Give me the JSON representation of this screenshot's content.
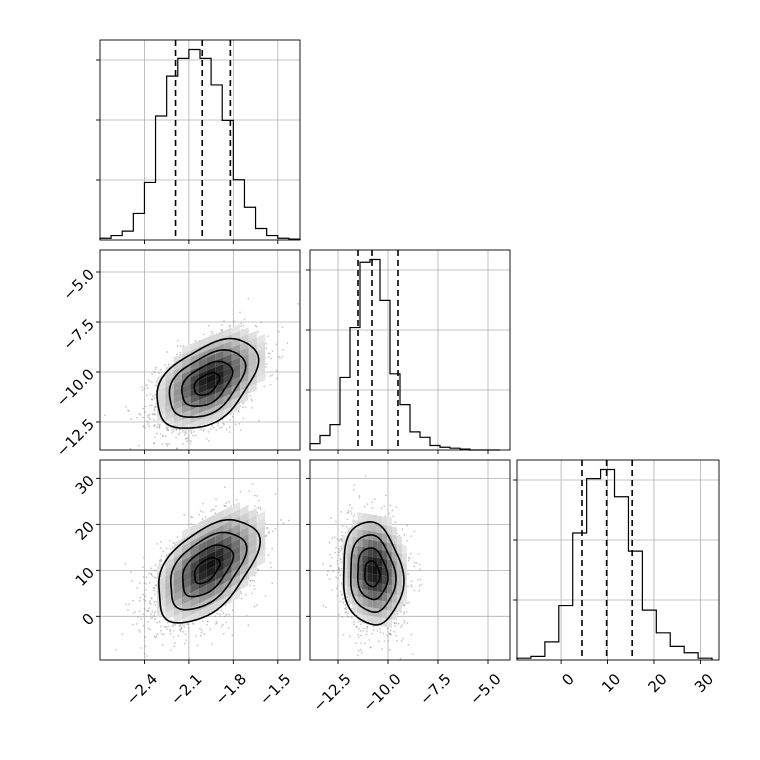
{
  "chart_data": {
    "type": "corner",
    "parameters": [
      {
        "range": [
          -2.7,
          -1.35
        ],
        "ticks": [
          -2.4,
          -2.1,
          -1.8,
          -1.5
        ],
        "tick_labels": [
          "−2.4",
          "−2.1",
          "−1.8",
          "−1.5"
        ],
        "quantiles": [
          -2.19,
          -2.01,
          -1.82
        ]
      },
      {
        "range": [
          -13.9,
          -3.9
        ],
        "ticks": [
          -12.5,
          -10.0,
          -7.5,
          -5.0
        ],
        "tick_labels": [
          "−12.5",
          "−10.0",
          "−7.5",
          "−5.0"
        ],
        "quantiles": [
          -11.5,
          -10.8,
          -9.5
        ]
      },
      {
        "range": [
          -9.5,
          34
        ],
        "ticks": [
          0,
          10,
          20,
          30
        ],
        "tick_labels": [
          "0",
          "10",
          "20",
          "30"
        ],
        "quantiles": [
          4.5,
          9.8,
          15.3
        ]
      }
    ],
    "histograms": [
      {
        "bin_edges": [
          -2.7,
          -2.625,
          -2.55,
          -2.475,
          -2.4,
          -2.325,
          -2.25,
          -2.175,
          -2.1,
          -2.025,
          -1.95,
          -1.875,
          -1.8,
          -1.725,
          -1.65,
          -1.575,
          -1.5,
          -1.425,
          -1.35
        ],
        "counts": [
          2,
          5,
          10,
          30,
          65,
          140,
          185,
          205,
          215,
          205,
          175,
          135,
          68,
          37,
          13,
          5,
          2,
          1
        ]
      },
      {
        "bin_edges": [
          -13.9,
          -13.4,
          -12.9,
          -12.4,
          -11.9,
          -11.4,
          -10.9,
          -10.4,
          -9.9,
          -9.4,
          -8.9,
          -8.4,
          -7.9,
          -7.4,
          -6.9,
          -6.4,
          -5.9,
          -5.4,
          -4.9,
          -4.4
        ],
        "counts": [
          7,
          16,
          28,
          80,
          135,
          207,
          210,
          165,
          84,
          50,
          20,
          14,
          5,
          3,
          2,
          1,
          0,
          0,
          0
        ]
      },
      {
        "bin_edges": [
          -9.5,
          -6.5,
          -3.5,
          -0.5,
          2.5,
          5.5,
          8.5,
          11.5,
          14.5,
          17.5,
          20.5,
          23.5,
          26.5,
          29.5,
          32.5
        ],
        "counts": [
          2,
          4,
          20,
          60,
          140,
          200,
          210,
          180,
          120,
          55,
          30,
          15,
          8,
          2
        ]
      }
    ],
    "pairs": [
      {
        "x_param": 0,
        "y_param": 1,
        "center": [
          -1.98,
          -10.6
        ],
        "sigma": [
          0.17,
          1.12
        ],
        "rho": 0.45
      },
      {
        "x_param": 0,
        "y_param": 2,
        "center": [
          -1.98,
          10.0
        ],
        "sigma": [
          0.17,
          5.6
        ],
        "rho": 0.5
      },
      {
        "x_param": 1,
        "y_param": 2,
        "center": [
          -10.8,
          9.2
        ],
        "sigma": [
          0.75,
          5.6
        ],
        "rho": -0.1
      }
    ],
    "contour_levels": [
      0.5,
      1.0,
      1.5,
      2.0
    ],
    "grid": true
  }
}
